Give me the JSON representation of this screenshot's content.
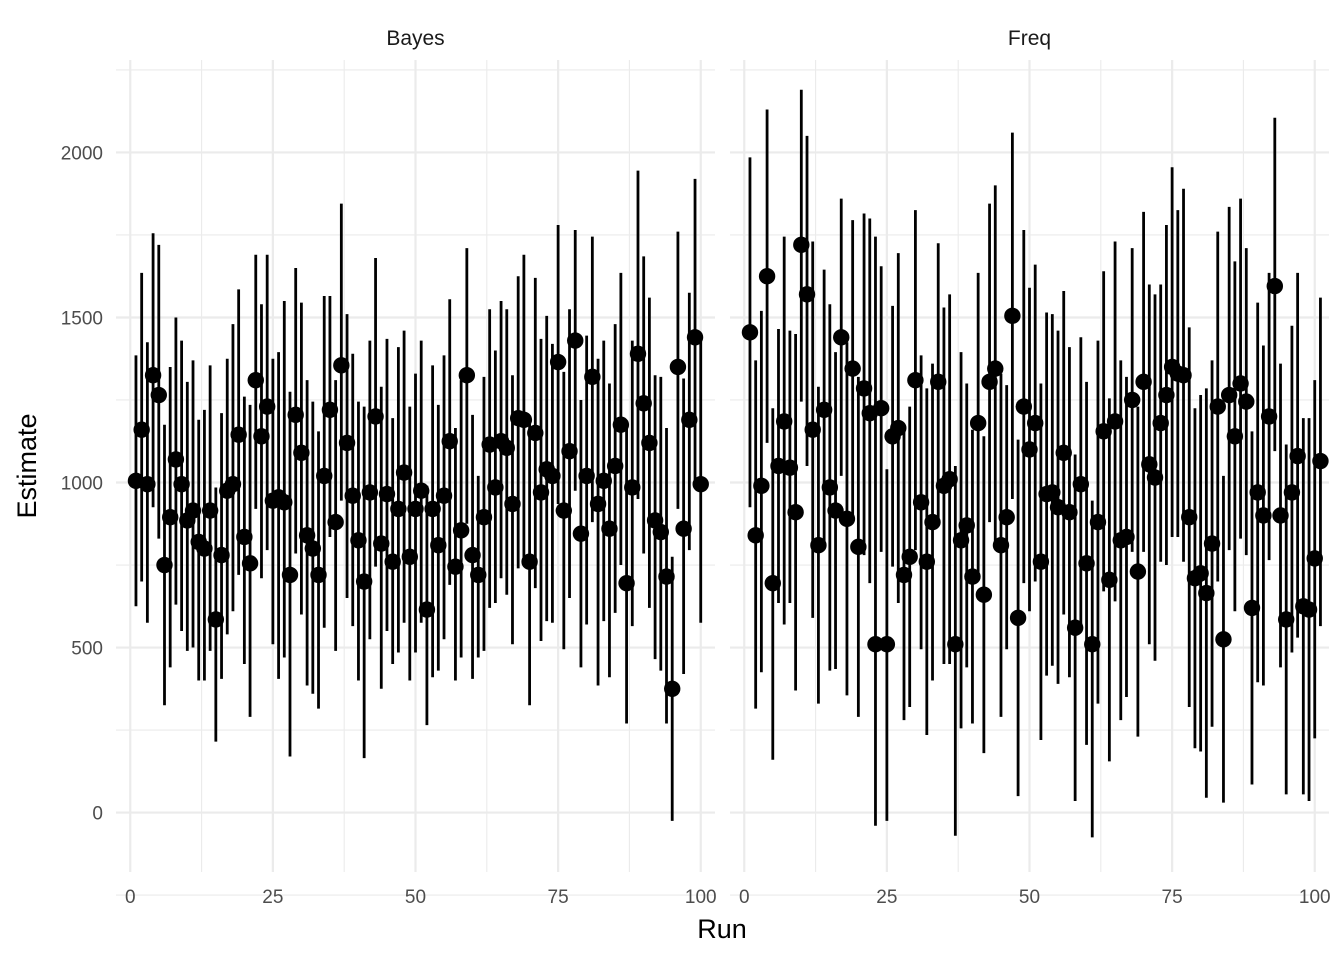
{
  "chart_data": {
    "type": "scatter",
    "subtype": "pointrange",
    "xlabel": "Run",
    "ylabel": "Estimate",
    "xlim": [
      -2.5,
      102.5
    ],
    "ylim": [
      -180,
      2280
    ],
    "x_ticks": [
      0,
      25,
      50,
      75,
      100
    ],
    "y_ticks": [
      0,
      500,
      1000,
      1500,
      2000
    ],
    "grid": true,
    "legend": "none",
    "colors": {
      "point": "#000000",
      "grid": "#ebebeb",
      "background": "#ffffff"
    },
    "facets": [
      {
        "label": "Bayes",
        "estimate": [
          1005,
          1160,
          995,
          1325,
          1265,
          750,
          895,
          1070,
          995,
          885,
          915,
          820,
          800,
          915,
          585,
          780,
          975,
          995,
          1145,
          835,
          755,
          1310,
          1140,
          1230,
          945,
          955,
          940,
          720,
          1205,
          1090,
          840,
          800,
          720,
          1020,
          1220,
          880,
          1355,
          1120,
          960,
          825,
          700,
          970,
          1200,
          815,
          965,
          760,
          920,
          1030,
          775,
          920,
          975,
          615,
          920,
          810,
          960,
          1125,
          745,
          855,
          1325,
          780,
          720,
          895,
          1115,
          985,
          1125,
          1105,
          935,
          1195,
          1190,
          760,
          1150,
          970,
          1040,
          1020,
          1365,
          915,
          1095,
          1430,
          845,
          1020,
          1320,
          935,
          1005,
          860,
          1050,
          1175,
          695,
          985,
          1390,
          1240,
          1120,
          885,
          850,
          715,
          375,
          1350,
          860,
          1190,
          1440,
          995
        ],
        "low": [
          625,
          700,
          575,
          925,
          830,
          325,
          440,
          630,
          550,
          490,
          500,
          400,
          400,
          490,
          215,
          405,
          540,
          610,
          720,
          450,
          290,
          920,
          710,
          795,
          510,
          405,
          470,
          170,
          785,
          600,
          385,
          360,
          315,
          560,
          835,
          490,
          945,
          650,
          565,
          400,
          165,
          525,
          745,
          375,
          550,
          450,
          485,
          575,
          400,
          485,
          575,
          265,
          410,
          430,
          525,
          690,
          400,
          470,
          875,
          405,
          470,
          490,
          620,
          635,
          710,
          660,
          510,
          740,
          760,
          325,
          680,
          520,
          580,
          575,
          935,
          495,
          650,
          975,
          440,
          570,
          880,
          385,
          580,
          410,
          605,
          750,
          270,
          565,
          950,
          785,
          620,
          465,
          430,
          270,
          -25,
          920,
          420,
          795,
          1000,
          575
        ],
        "high": [
          1385,
          1635,
          1425,
          1755,
          1720,
          1175,
          1350,
          1500,
          1430,
          1305,
          1370,
          1190,
          1220,
          1355,
          985,
          1210,
          1375,
          1480,
          1585,
          1260,
          1235,
          1690,
          1540,
          1690,
          1375,
          1395,
          1550,
          1275,
          1650,
          1545,
          1310,
          1245,
          1155,
          1565,
          1565,
          1310,
          1845,
          1510,
          1390,
          1245,
          1230,
          1430,
          1680,
          1290,
          1435,
          1195,
          1410,
          1460,
          1230,
          1330,
          1430,
          990,
          1355,
          1235,
          1385,
          1555,
          1165,
          1310,
          1710,
          1205,
          1020,
          1320,
          1525,
          1400,
          1550,
          1525,
          1325,
          1625,
          1690,
          1200,
          1620,
          1435,
          1505,
          1420,
          1780,
          1335,
          1525,
          1765,
          1250,
          1445,
          1745,
          1375,
          1430,
          1300,
          1480,
          1635,
          1185,
          1430,
          1945,
          1685,
          1560,
          1325,
          1320,
          1165,
          775,
          1760,
          1315,
          1575,
          1920,
          1435
        ]
      },
      {
        "label": "Freq",
        "estimate": [
          1455,
          840,
          990,
          1625,
          695,
          1050,
          1185,
          1045,
          910,
          1720,
          1570,
          1160,
          810,
          1220,
          985,
          915,
          1440,
          890,
          1345,
          805,
          1285,
          1210,
          510,
          1225,
          510,
          1140,
          1165,
          720,
          775,
          1310,
          940,
          760,
          880,
          1305,
          990,
          1010,
          510,
          825,
          870,
          715,
          1180,
          660,
          1305,
          1345,
          810,
          895,
          1505,
          590,
          1230,
          1100,
          1180,
          760,
          965,
          970,
          925,
          1090,
          910,
          560,
          995,
          755,
          510,
          880,
          1155,
          705,
          1185,
          825,
          835,
          1250,
          730,
          1305,
          1055,
          1015,
          1180,
          1265,
          1350,
          1330,
          1325,
          895,
          710,
          725,
          665,
          815,
          1230,
          525,
          1265,
          1140,
          1300,
          1245,
          620,
          970,
          900,
          1200,
          1595,
          900,
          585,
          970,
          1080,
          625,
          615,
          770,
          1065
        ],
        "low": [
          925,
          315,
          425,
          1120,
          160,
          635,
          570,
          635,
          370,
          1245,
          1050,
          590,
          330,
          800,
          430,
          435,
          1020,
          355,
          895,
          290,
          780,
          695,
          -40,
          790,
          -25,
          745,
          635,
          280,
          320,
          795,
          495,
          235,
          400,
          885,
          450,
          450,
          -70,
          255,
          440,
          270,
          725,
          180,
          880,
          800,
          290,
          495,
          950,
          50,
          695,
          610,
          700,
          220,
          415,
          445,
          390,
          600,
          410,
          35,
          550,
          205,
          -75,
          330,
          670,
          155,
          640,
          280,
          350,
          790,
          230,
          790,
          510,
          460,
          760,
          750,
          835,
          835,
          760,
          320,
          195,
          185,
          45,
          260,
          700,
          30,
          795,
          610,
          830,
          780,
          85,
          395,
          385,
          765,
          1095,
          440,
          55,
          485,
          530,
          55,
          35,
          225,
          565
        ],
        "high": [
          1985,
          1370,
          1520,
          2130,
          1225,
          1465,
          1745,
          1460,
          1450,
          2190,
          2050,
          1730,
          1290,
          1645,
          1540,
          1395,
          1860,
          1425,
          1795,
          1320,
          1815,
          1800,
          1745,
          1655,
          1040,
          1535,
          1695,
          1160,
          1230,
          1825,
          1385,
          1285,
          1360,
          1725,
          1530,
          1570,
          1050,
          1395,
          1300,
          1160,
          1635,
          1140,
          1845,
          1900,
          1330,
          1295,
          2060,
          1130,
          1765,
          1590,
          1660,
          1300,
          1515,
          1510,
          1460,
          1580,
          1410,
          1085,
          1440,
          1305,
          945,
          1430,
          1640,
          1255,
          1730,
          1370,
          1320,
          1710,
          1230,
          1820,
          1600,
          1570,
          1600,
          1780,
          1955,
          1825,
          1890,
          1470,
          1225,
          1265,
          1285,
          1370,
          1760,
          1020,
          1835,
          1670,
          1860,
          1710,
          1155,
          1545,
          1415,
          1635,
          2105,
          1360,
          1115,
          1475,
          1635,
          1195,
          1195,
          1310,
          1560
        ]
      }
    ]
  }
}
